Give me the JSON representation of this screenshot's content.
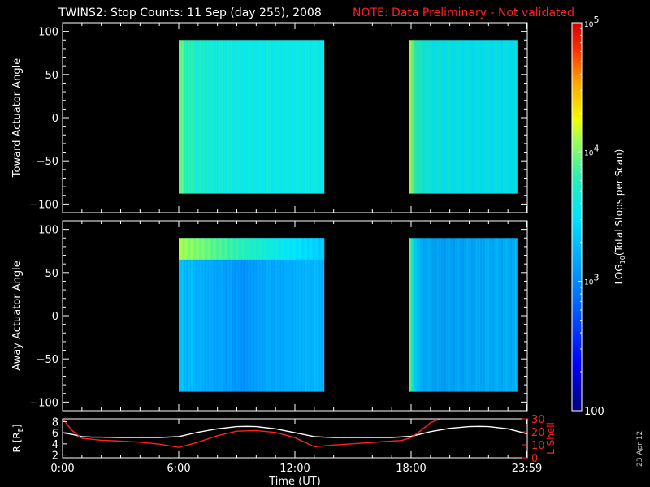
{
  "title": "TWINS2: Stop Counts: 11 Sep (day 255), 2008",
  "note": "NOTE: Data Preliminary - Not validated",
  "date_stamp": "23 Apr 12",
  "chart_data": [
    {
      "type": "heatmap",
      "name": "toward-actuator-panel",
      "ylabel": "Toward Actuator Angle",
      "xlim": [
        0,
        24
      ],
      "ylim": [
        -110,
        110
      ],
      "y_ticks": [
        -100,
        -50,
        0,
        50,
        100
      ],
      "value_range_log10": [
        2,
        5
      ],
      "data_blocks": [
        {
          "t_start": 6.0,
          "t_end": 13.5,
          "angle_min": -88,
          "angle_max": 90,
          "time_profile_log10": [
            [
              6.0,
              3.95
            ],
            [
              6.15,
              3.9
            ],
            [
              6.4,
              3.78
            ],
            [
              7.0,
              3.7
            ],
            [
              8.0,
              3.65
            ],
            [
              9.5,
              3.6
            ],
            [
              11.0,
              3.6
            ],
            [
              13.5,
              3.6
            ]
          ]
        },
        {
          "t_start": 17.9,
          "t_end": 23.5,
          "angle_min": -88,
          "angle_max": 90,
          "time_profile_log10": [
            [
              17.9,
              4.1
            ],
            [
              18.1,
              3.95
            ],
            [
              18.35,
              3.72
            ],
            [
              19.0,
              3.6
            ],
            [
              21.0,
              3.55
            ],
            [
              23.5,
              3.55
            ]
          ]
        }
      ]
    },
    {
      "type": "heatmap",
      "name": "away-actuator-panel",
      "ylabel": "Away Actuator Angle",
      "xlim": [
        0,
        24
      ],
      "ylim": [
        -110,
        110
      ],
      "y_ticks": [
        -100,
        -50,
        0,
        50,
        100
      ],
      "value_range_log10": [
        2,
        5
      ],
      "data_blocks": [
        {
          "t_start": 6.0,
          "t_end": 13.5,
          "angle_min": -88,
          "angle_max": 90,
          "time_profile_log10": [
            [
              6.0,
              3.3
            ],
            [
              6.5,
              3.25
            ],
            [
              8.0,
              3.15
            ],
            [
              9.3,
              3.05
            ],
            [
              10.5,
              3.15
            ],
            [
              12.0,
              3.2
            ],
            [
              13.5,
              3.25
            ]
          ],
          "hot_band": {
            "angle_min": 65,
            "angle_max": 90,
            "log10": 4.1,
            "t_end": 13.5
          }
        },
        {
          "t_start": 17.9,
          "t_end": 23.5,
          "angle_min": -88,
          "angle_max": 90,
          "time_profile_log10": [
            [
              17.9,
              4.05
            ],
            [
              18.1,
              3.6
            ],
            [
              18.4,
              3.25
            ],
            [
              19.5,
              3.15
            ],
            [
              21.5,
              3.2
            ],
            [
              23.5,
              3.25
            ]
          ]
        }
      ]
    },
    {
      "type": "line",
      "name": "orbit-panel",
      "ylabel_left": "R [R",
      "ylabel_left_sub": "E",
      "ylabel_left_end": "]",
      "ylabel_right": "L Shell",
      "xlabel": "Time (UT)",
      "xlim": [
        0,
        24
      ],
      "x_ticks": [
        {
          "t": 0,
          "label": "0:00"
        },
        {
          "t": 6,
          "label": "6:00"
        },
        {
          "t": 12,
          "label": "12:00"
        },
        {
          "t": 18,
          "label": "18:00"
        },
        {
          "t": 23.98,
          "label": "23:59"
        }
      ],
      "ylim_left": [
        1.5,
        8.5
      ],
      "y_ticks_left": [
        2,
        4,
        6,
        8
      ],
      "ylim_right": [
        0,
        30
      ],
      "y_ticks_right": [
        0,
        10,
        20,
        30
      ],
      "series": [
        {
          "name": "R",
          "axis": "left",
          "color": "#ffffff",
          "t": [
            0,
            0.5,
            1,
            1.5,
            2,
            3,
            4,
            5,
            6,
            7,
            8,
            9,
            9.5,
            10,
            11,
            12,
            13,
            13.5,
            14,
            15,
            16,
            17,
            18,
            19,
            20,
            21,
            21.5,
            22,
            23,
            24
          ],
          "v": [
            6.0,
            5.7,
            5.3,
            5.2,
            5.2,
            5.15,
            5.15,
            5.15,
            5.3,
            6.1,
            6.7,
            7.1,
            7.15,
            7.1,
            6.7,
            6.0,
            5.3,
            5.2,
            5.15,
            5.15,
            5.15,
            5.15,
            5.35,
            6.2,
            6.8,
            7.1,
            7.15,
            7.1,
            6.7,
            5.8
          ]
        },
        {
          "name": "L Shell",
          "axis": "right",
          "color": "#ff2020",
          "t": [
            0,
            0.5,
            1,
            2,
            3,
            4,
            5,
            6,
            7,
            8,
            9,
            10,
            11,
            12,
            13,
            14,
            15,
            16,
            17,
            17.5,
            18,
            18.5,
            19,
            19.5
          ],
          "v": [
            30,
            21,
            15,
            13.5,
            12.8,
            12,
            10.5,
            8,
            12,
            17,
            20.5,
            21,
            19.5,
            15.5,
            8.5,
            9.8,
            10.8,
            11.8,
            12.8,
            13.3,
            15.5,
            21,
            27,
            30
          ]
        }
      ]
    },
    {
      "type": "heatmap",
      "name": "colorbar",
      "label": "LOG",
      "label_sub": "10",
      "label_end": "(Total Stops per Scan)",
      "value_range_log10": [
        2,
        5
      ],
      "tick_labels": [
        {
          "log10": 2,
          "text": "100"
        },
        {
          "log10": 3,
          "base": "10",
          "exp": "3"
        },
        {
          "log10": 4,
          "base": "10",
          "exp": "4"
        },
        {
          "log10": 5,
          "base": "10",
          "exp": "5"
        }
      ]
    }
  ]
}
